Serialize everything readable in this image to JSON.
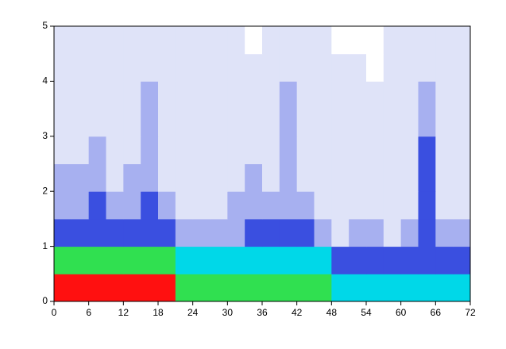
{
  "chart_data": {
    "type": "heatmap",
    "xlim": [
      0,
      72
    ],
    "ylim": [
      0,
      5
    ],
    "xticks": [
      0,
      6,
      12,
      18,
      24,
      30,
      36,
      42,
      48,
      54,
      60,
      66,
      72
    ],
    "yticks": [
      0,
      1,
      2,
      3,
      4,
      5
    ],
    "xbins": [
      0,
      3,
      6,
      9,
      12,
      15,
      18,
      21,
      24,
      27,
      30,
      33,
      36,
      39,
      42,
      45,
      48,
      51,
      54,
      57,
      60,
      63,
      66,
      69,
      72
    ],
    "ybins": [
      0,
      0.5,
      1,
      1.5,
      2,
      2.5,
      3,
      3.5,
      4,
      4.5,
      5
    ],
    "colorscale": [
      "#ffffff",
      "#dfe3f8",
      "#a7b0f0",
      "#3a4fe0",
      "#00d8e8",
      "#30e050",
      "#ff1010"
    ],
    "z": [
      [
        6,
        6,
        6,
        6,
        6,
        6,
        6,
        5,
        5,
        5,
        5,
        5,
        5,
        5,
        5,
        5,
        4,
        4,
        4,
        4,
        4,
        4,
        4,
        4
      ],
      [
        5,
        5,
        5,
        5,
        5,
        5,
        5,
        4,
        4,
        4,
        4,
        4,
        4,
        4,
        4,
        4,
        3,
        3,
        3,
        3,
        3,
        3,
        3,
        3
      ],
      [
        3,
        3,
        3,
        3,
        3,
        3,
        3,
        2,
        2,
        2,
        2,
        3,
        3,
        3,
        3,
        2,
        1,
        2,
        2,
        1,
        2,
        3,
        2,
        2
      ],
      [
        2,
        2,
        3,
        2,
        2,
        3,
        2,
        1,
        1,
        1,
        2,
        2,
        2,
        2,
        2,
        1,
        1,
        1,
        1,
        1,
        1,
        3,
        1,
        1
      ],
      [
        2,
        2,
        2,
        1,
        2,
        2,
        1,
        1,
        1,
        1,
        1,
        2,
        1,
        2,
        1,
        1,
        1,
        1,
        1,
        1,
        1,
        3,
        1,
        1
      ],
      [
        1,
        1,
        2,
        1,
        1,
        2,
        1,
        1,
        1,
        1,
        1,
        1,
        1,
        2,
        1,
        1,
        1,
        1,
        1,
        1,
        1,
        3,
        1,
        1
      ],
      [
        1,
        1,
        1,
        1,
        1,
        2,
        1,
        1,
        1,
        1,
        1,
        1,
        1,
        2,
        1,
        1,
        1,
        1,
        1,
        1,
        1,
        2,
        1,
        1
      ],
      [
        1,
        1,
        1,
        1,
        1,
        2,
        1,
        1,
        1,
        1,
        1,
        1,
        1,
        2,
        1,
        1,
        1,
        1,
        1,
        1,
        1,
        2,
        1,
        1
      ],
      [
        1,
        1,
        1,
        1,
        1,
        1,
        1,
        1,
        1,
        1,
        1,
        1,
        1,
        1,
        1,
        1,
        1,
        1,
        0,
        1,
        1,
        1,
        1,
        1
      ],
      [
        1,
        1,
        1,
        1,
        1,
        1,
        1,
        1,
        1,
        1,
        1,
        0,
        1,
        1,
        1,
        1,
        0,
        0,
        0,
        1,
        1,
        1,
        1,
        1
      ]
    ]
  }
}
